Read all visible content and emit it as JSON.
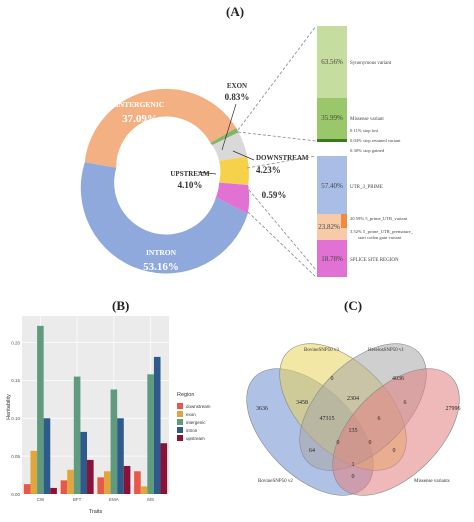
{
  "panels": {
    "a": "(A)",
    "b": "(B)",
    "c": "(C)"
  },
  "colors": {
    "intergenic": "#f3b183",
    "intron": "#8fa9dc",
    "exon": "#7fb66a",
    "downstream": "#d9d9d9",
    "upstream": "#f6d24a",
    "splice": "#e271d4",
    "green_light": "#c5dd9f",
    "green_dark": "#9bc76b",
    "green_deep": "#3c7a1e",
    "blue_light": "#aabde6",
    "orange_light": "#f7cba8",
    "orange_mid": "#f08b3c"
  },
  "donut": {
    "labels": [
      {
        "name": "INTERGENIC",
        "pct": "37.09%"
      },
      {
        "name": "INTRON",
        "pct": "53.16%"
      },
      {
        "name": "UPSTREAM",
        "pct": "4.10%"
      },
      {
        "name": "DOWNSTREAM",
        "pct": "4.23%"
      },
      {
        "name": "EXON",
        "pct": "0.83%"
      }
    ],
    "splice_pct": "0.59%"
  },
  "breakdown": {
    "exon": [
      {
        "pct": "63.56%",
        "label": "Synonymous variant"
      },
      {
        "pct": "35.99%",
        "label": "Missense variant"
      },
      {
        "pct": "",
        "label": "0.11%  stop lost"
      },
      {
        "pct": "",
        "label": "0.04%  stop retained variant"
      },
      {
        "pct": "",
        "label": "0.30%  stop gained"
      }
    ],
    "utr": [
      {
        "pct": "57.40%",
        "label": "UTR_3_PRIME"
      },
      {
        "pct": "23.82%",
        "label": ""
      },
      {
        "pct": "",
        "label": "20.59%  5_prime_UTR_variant"
      },
      {
        "pct": "",
        "label": "3.52%  5_prime_UTR_premature_"
      },
      {
        "pct": "",
        "label": "start codon gain variant"
      }
    ],
    "splice": {
      "pct": "18.78%",
      "label": "SPLICE SITE REGION"
    }
  },
  "chart_data": [
    {
      "type": "pie",
      "labels": [
        "INTERGENIC",
        "INTRON",
        "UPSTREAM",
        "DOWNSTREAM",
        "EXON",
        "SPLICE SITE REGION"
      ],
      "values": [
        37.09,
        53.16,
        4.1,
        4.23,
        0.83,
        0.59
      ]
    },
    {
      "type": "bar",
      "categories": [
        "CW",
        "BFT",
        "EMA",
        "MS"
      ],
      "series": [
        {
          "name": "downstream",
          "values": [
            0.013,
            0.018,
            0.022,
            0.03
          ]
        },
        {
          "name": "exon",
          "values": [
            0.057,
            0.032,
            0.03,
            0.01
          ]
        },
        {
          "name": "intergenic",
          "values": [
            0.222,
            0.155,
            0.138,
            0.158
          ]
        },
        {
          "name": "intron",
          "values": [
            0.1,
            0.082,
            0.1,
            0.181
          ]
        },
        {
          "name": "upstream",
          "values": [
            0.008,
            0.045,
            0.037,
            0.067
          ]
        }
      ],
      "xlabel": "Traits",
      "ylabel": "Heritability",
      "ylim": [
        0,
        0.235
      ],
      "yticks": [
        "0.00",
        "0.05",
        "0.10",
        "0.15",
        "0.20"
      ],
      "legend_title": "Region",
      "grid": true,
      "legend": "right"
    },
    {
      "type": "venn",
      "sets": [
        "BovineSNP50 v3",
        "HereiosSNP50 v1",
        "BovineSNP50 v2",
        "Missense variants"
      ],
      "counts": [
        "3636",
        "0",
        "3458",
        "2304",
        "4036",
        "6",
        "27996",
        "47315",
        "6",
        "135",
        "0",
        "0",
        "64",
        "0",
        "1",
        "0"
      ]
    }
  ]
}
